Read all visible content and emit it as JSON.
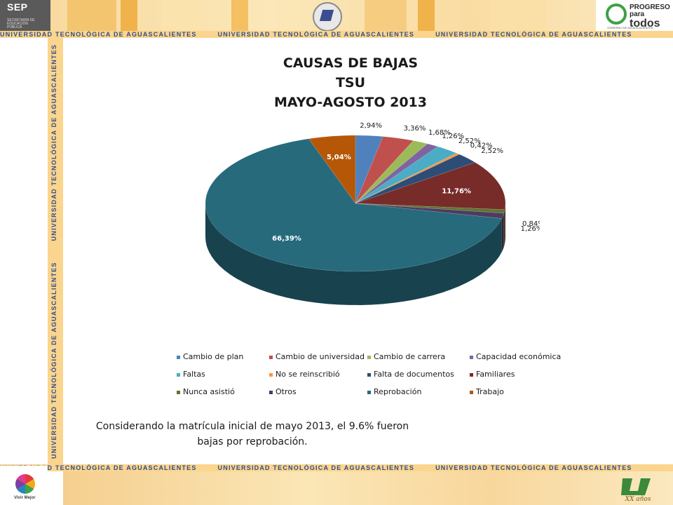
{
  "header": {
    "sep_label": "SEP",
    "sep_sub": "SECRETARÍA DE EDUCACIÓN PÚBLICA",
    "banner_text": "UNIVERSIDAD TECNOLÓGICA DE AGUASCALIENTES",
    "right_logo_line1": "PROGRESO",
    "right_logo_line2": "para",
    "right_logo_line3": "todos",
    "right_logo_sub": "GOBIERNO DE AGUASCALIENTES"
  },
  "side_banner_text": "UNIVERSIDAD TECNOLÓGICA DE AGUASCALIENTES",
  "footer": {
    "left_logo_text": "Vivir Mejor",
    "right_logo_text": "XX años"
  },
  "chart_data": {
    "type": "pie",
    "title_lines": [
      "CAUSAS DE BAJAS",
      "TSU",
      "MAYO-AGOSTO 2013"
    ],
    "categories": [
      "Cambio de plan",
      "Cambio de universidad",
      "Cambio de carrera",
      "Capacidad económica",
      "Faltas",
      "No se reinscribió",
      "Falta de documentos",
      "Familiares",
      "Nunca asistió",
      "Otros",
      "Reprobación",
      "Trabajo"
    ],
    "values": [
      2.94,
      3.36,
      1.68,
      1.26,
      2.52,
      0.42,
      2.52,
      11.76,
      0.84,
      1.26,
      66.39,
      5.04
    ],
    "value_labels": [
      "2,94%",
      "3,36%",
      "1,68%",
      "1,26%",
      "2,52%",
      "0,42%",
      "2,52%",
      "11,76%",
      "0,84%",
      "1,26%",
      "66,39%",
      "5,04%"
    ],
    "colors": [
      "#4f81bd",
      "#c0504d",
      "#9bbb59",
      "#8064a2",
      "#4bacc6",
      "#f79646",
      "#2c4d75",
      "#772c2a",
      "#5f7530",
      "#4d3b62",
      "#276a7c",
      "#b65708"
    ],
    "legend_position": "bottom",
    "style": "3d"
  },
  "caption": "Considerando la matrícula inicial de mayo 2013,  el 9.6% fueron bajas por reprobación."
}
